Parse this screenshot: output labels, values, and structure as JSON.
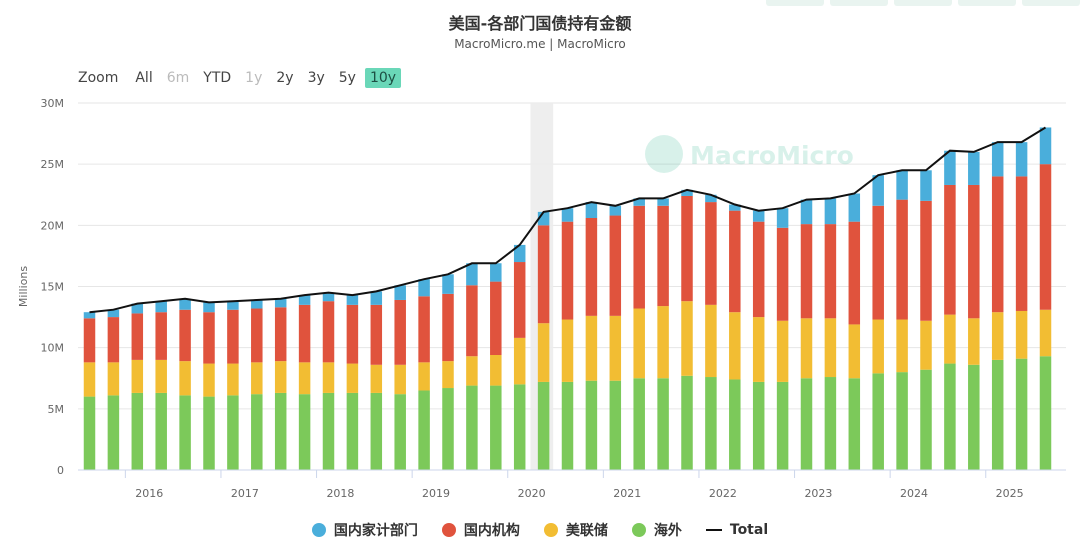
{
  "header": {
    "title": "美国-各部门国债持有金额",
    "subtitle": "MacroMicro.me | MacroMicro"
  },
  "zoom": {
    "label": "Zoom",
    "options": [
      {
        "label": "All",
        "state": "normal"
      },
      {
        "label": "6m",
        "state": "disabled"
      },
      {
        "label": "YTD",
        "state": "normal"
      },
      {
        "label": "1y",
        "state": "disabled"
      },
      {
        "label": "2y",
        "state": "normal"
      },
      {
        "label": "3y",
        "state": "normal"
      },
      {
        "label": "5y",
        "state": "normal"
      },
      {
        "label": "10y",
        "state": "active"
      }
    ]
  },
  "watermark": "MacroMicro",
  "legend": [
    {
      "label": "国内家计部门",
      "color": "#4aaedb",
      "kind": "dot"
    },
    {
      "label": "国内机构",
      "color": "#e0533d",
      "kind": "dot"
    },
    {
      "label": "美联储",
      "color": "#f2bd33",
      "kind": "dot"
    },
    {
      "label": "海外",
      "color": "#7cc95a",
      "kind": "dot"
    },
    {
      "label": "Total",
      "color": "#111111",
      "kind": "line"
    }
  ],
  "chart_data": {
    "type": "bar",
    "stacked": true,
    "ylabel": "Millions",
    "yticks": [
      "0",
      "5M",
      "10M",
      "15M",
      "20M",
      "25M",
      "30M"
    ],
    "ylim": [
      0,
      30
    ],
    "xticks": [
      "2016",
      "2017",
      "2018",
      "2019",
      "2020",
      "2021",
      "2022",
      "2023",
      "2024",
      "2025"
    ],
    "grid": true,
    "legend_position": "bottom",
    "shaded_period": "2020 Q1–Q2",
    "x": [
      "2015Q3",
      "2015Q4",
      "2016Q1",
      "2016Q2",
      "2016Q3",
      "2016Q4",
      "2017Q1",
      "2017Q2",
      "2017Q3",
      "2017Q4",
      "2018Q1",
      "2018Q2",
      "2018Q3",
      "2018Q4",
      "2019Q1",
      "2019Q2",
      "2019Q3",
      "2019Q4",
      "2020Q1",
      "2020Q2",
      "2020Q3",
      "2020Q4",
      "2021Q1",
      "2021Q2",
      "2021Q3",
      "2021Q4",
      "2022Q1",
      "2022Q2",
      "2022Q3",
      "2022Q4",
      "2023Q1",
      "2023Q2",
      "2023Q3",
      "2023Q4",
      "2024Q1",
      "2024Q2",
      "2024Q3",
      "2024Q4",
      "2025Q1",
      "2025Q2",
      "2025Q3"
    ],
    "series": [
      {
        "name": "海外",
        "color": "#7cc95a",
        "values": [
          6.0,
          6.1,
          6.3,
          6.3,
          6.1,
          6.0,
          6.1,
          6.2,
          6.3,
          6.2,
          6.3,
          6.3,
          6.3,
          6.2,
          6.5,
          6.7,
          6.9,
          6.9,
          7.0,
          7.2,
          7.2,
          7.3,
          7.3,
          7.5,
          7.5,
          7.7,
          7.6,
          7.4,
          7.2,
          7.2,
          7.5,
          7.6,
          7.5,
          7.9,
          8.0,
          8.2,
          8.7,
          8.6,
          9.0,
          9.1,
          9.3
        ]
      },
      {
        "name": "美联储",
        "color": "#f2bd33",
        "values": [
          2.8,
          2.7,
          2.7,
          2.7,
          2.8,
          2.7,
          2.6,
          2.6,
          2.6,
          2.6,
          2.5,
          2.4,
          2.3,
          2.4,
          2.3,
          2.2,
          2.4,
          2.5,
          3.8,
          4.8,
          5.1,
          5.3,
          5.3,
          5.7,
          5.9,
          6.1,
          5.9,
          5.5,
          5.3,
          5.0,
          4.9,
          4.8,
          4.4,
          4.4,
          4.3,
          4.0,
          4.0,
          3.8,
          3.9,
          3.9,
          3.8
        ]
      },
      {
        "name": "国内机构",
        "color": "#e0533d",
        "values": [
          3.6,
          3.7,
          3.8,
          3.9,
          4.2,
          4.2,
          4.4,
          4.4,
          4.4,
          4.7,
          5.0,
          4.8,
          4.9,
          5.3,
          5.4,
          5.5,
          5.8,
          6.0,
          6.2,
          8.0,
          8.0,
          8.0,
          8.2,
          8.4,
          8.2,
          8.6,
          8.4,
          8.3,
          7.8,
          7.6,
          7.7,
          7.7,
          8.4,
          9.3,
          9.8,
          9.8,
          10.6,
          10.9,
          11.1,
          11.0,
          11.9
        ]
      },
      {
        "name": "国内家计部门",
        "color": "#4aaedb",
        "values": [
          0.5,
          0.6,
          0.8,
          0.9,
          0.9,
          0.8,
          0.7,
          0.7,
          0.7,
          0.8,
          0.7,
          0.8,
          1.1,
          1.2,
          1.4,
          1.6,
          1.8,
          1.5,
          1.4,
          1.1,
          1.1,
          1.3,
          0.8,
          0.6,
          0.6,
          0.5,
          0.6,
          0.5,
          0.9,
          1.6,
          2.0,
          2.1,
          2.3,
          2.5,
          2.4,
          2.5,
          2.8,
          2.7,
          2.8,
          2.8,
          3.0
        ]
      },
      {
        "name": "Total",
        "color": "#111111",
        "kind": "line",
        "values": [
          12.9,
          13.1,
          13.6,
          13.8,
          14.0,
          13.7,
          13.8,
          13.9,
          14.0,
          14.3,
          14.5,
          14.3,
          14.6,
          15.1,
          15.6,
          16.0,
          16.9,
          16.9,
          18.4,
          21.1,
          21.4,
          21.9,
          21.6,
          22.2,
          22.2,
          22.9,
          22.5,
          21.7,
          21.2,
          21.4,
          22.1,
          22.2,
          22.6,
          24.1,
          24.5,
          24.5,
          26.1,
          26.0,
          26.8,
          26.8,
          28.0
        ]
      }
    ]
  }
}
